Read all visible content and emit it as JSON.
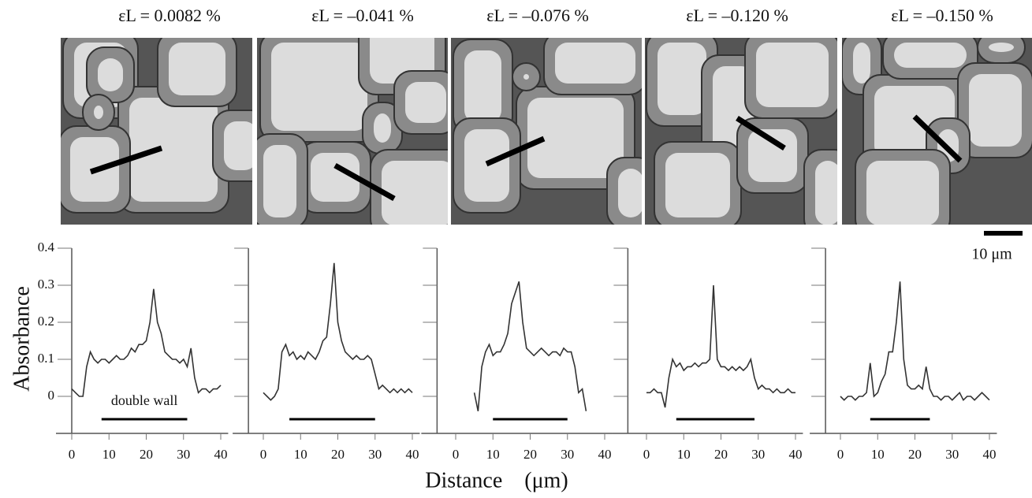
{
  "scale_bar_label": "10 μm",
  "chart_data": [
    {
      "type": "line",
      "title": "εL = 0.0082 %",
      "ylabel": "Absorbance",
      "annotation": "double wall",
      "x": [
        0,
        1,
        2,
        3,
        4,
        5,
        6,
        7,
        8,
        9,
        10,
        11,
        12,
        13,
        14,
        15,
        16,
        17,
        18,
        19,
        20,
        21,
        22,
        23,
        24,
        25,
        26,
        27,
        28,
        29,
        30,
        31,
        32,
        33,
        34,
        35,
        36,
        37,
        38,
        39,
        40
      ],
      "values": [
        0.02,
        0.01,
        0,
        0,
        0.08,
        0.12,
        0.1,
        0.09,
        0.1,
        0.1,
        0.09,
        0.1,
        0.11,
        0.1,
        0.1,
        0.11,
        0.13,
        0.12,
        0.14,
        0.14,
        0.15,
        0.2,
        0.29,
        0.2,
        0.17,
        0.12,
        0.11,
        0.1,
        0.1,
        0.09,
        0.1,
        0.08,
        0.13,
        0.05,
        0.01,
        0.02,
        0.02,
        0.01,
        0.02,
        0.02,
        0.03
      ],
      "double_wall": [
        8,
        31
      ],
      "color": "#333333",
      "xlim": [
        0,
        42
      ],
      "ylim": [
        -0.1,
        0.4
      ],
      "xticks": [
        0,
        10,
        20,
        30,
        40
      ],
      "yticks": [
        0,
        0.1,
        0.2,
        0.3,
        0.4
      ],
      "show_ytick_labels": true
    },
    {
      "type": "line",
      "title": "εL = –0.041 %",
      "x": [
        0,
        1,
        2,
        3,
        4,
        5,
        6,
        7,
        8,
        9,
        10,
        11,
        12,
        13,
        14,
        15,
        16,
        17,
        18,
        19,
        20,
        21,
        22,
        23,
        24,
        25,
        26,
        27,
        28,
        29,
        30,
        31,
        32,
        33,
        34,
        35,
        36,
        37,
        38,
        39,
        40
      ],
      "values": [
        0.01,
        0,
        -0.01,
        0,
        0.02,
        0.12,
        0.14,
        0.11,
        0.12,
        0.1,
        0.11,
        0.1,
        0.12,
        0.11,
        0.1,
        0.12,
        0.15,
        0.16,
        0.25,
        0.36,
        0.2,
        0.15,
        0.12,
        0.11,
        0.1,
        0.11,
        0.1,
        0.1,
        0.11,
        0.1,
        0.06,
        0.02,
        0.03,
        0.02,
        0.01,
        0.02,
        0.01,
        0.02,
        0.01,
        0.02,
        0.01
      ],
      "double_wall": [
        7,
        30
      ],
      "color": "#333333",
      "xlim": [
        -4,
        42
      ],
      "ylim": [
        -0.1,
        0.4
      ],
      "xticks": [
        0,
        10,
        20,
        30,
        40
      ],
      "yticks": [
        0,
        0.1,
        0.2,
        0.3,
        0.4
      ],
      "show_ytick_labels": false
    },
    {
      "type": "line",
      "title": "εL = –0.076 %",
      "xlabel": "Distance    (μm)",
      "x": [
        5,
        6,
        7,
        8,
        9,
        10,
        11,
        12,
        13,
        14,
        15,
        16,
        17,
        18,
        19,
        20,
        21,
        22,
        23,
        24,
        25,
        26,
        27,
        28,
        29,
        30,
        31,
        32,
        33,
        34,
        35
      ],
      "values": [
        0.01,
        -0.04,
        0.08,
        0.12,
        0.14,
        0.11,
        0.12,
        0.12,
        0.14,
        0.17,
        0.25,
        0.28,
        0.31,
        0.2,
        0.13,
        0.12,
        0.11,
        0.12,
        0.13,
        0.12,
        0.11,
        0.12,
        0.12,
        0.11,
        0.13,
        0.12,
        0.12,
        0.08,
        0.01,
        0.02,
        -0.04
      ],
      "double_wall": [
        10,
        30
      ],
      "color": "#333333",
      "xlim": [
        -5,
        42
      ],
      "ylim": [
        -0.1,
        0.4
      ],
      "xticks": [
        0,
        10,
        20,
        30,
        40
      ],
      "yticks": [
        0,
        0.1,
        0.2,
        0.3,
        0.4
      ],
      "show_ytick_labels": false
    },
    {
      "type": "line",
      "title": "εL = –0.120 %",
      "x": [
        0,
        1,
        2,
        3,
        4,
        5,
        6,
        7,
        8,
        9,
        10,
        11,
        12,
        13,
        14,
        15,
        16,
        17,
        18,
        19,
        20,
        21,
        22,
        23,
        24,
        25,
        26,
        27,
        28,
        29,
        30,
        31,
        32,
        33,
        34,
        35,
        36,
        37,
        38,
        39,
        40
      ],
      "values": [
        0.01,
        0.01,
        0.02,
        0.01,
        0.01,
        -0.03,
        0.05,
        0.1,
        0.08,
        0.09,
        0.07,
        0.08,
        0.08,
        0.09,
        0.08,
        0.09,
        0.09,
        0.1,
        0.3,
        0.1,
        0.08,
        0.08,
        0.07,
        0.08,
        0.07,
        0.08,
        0.07,
        0.08,
        0.1,
        0.05,
        0.02,
        0.03,
        0.02,
        0.02,
        0.01,
        0.02,
        0.01,
        0.01,
        0.02,
        0.01,
        0.01
      ],
      "double_wall": [
        8,
        29
      ],
      "color": "#333333",
      "xlim": [
        -5,
        42
      ],
      "ylim": [
        -0.1,
        0.4
      ],
      "xticks": [
        0,
        10,
        20,
        30,
        40
      ],
      "yticks": [
        0,
        0.1,
        0.2,
        0.3,
        0.4
      ],
      "show_ytick_labels": false
    },
    {
      "type": "line",
      "title": "εL = –0.150 %",
      "x": [
        0,
        1,
        2,
        3,
        4,
        5,
        6,
        7,
        8,
        9,
        10,
        11,
        12,
        13,
        14,
        15,
        16,
        17,
        18,
        19,
        20,
        21,
        22,
        23,
        24,
        25,
        26,
        27,
        28,
        29,
        30,
        31,
        32,
        33,
        34,
        35,
        36,
        37,
        38,
        39,
        40
      ],
      "values": [
        0,
        -0.01,
        0,
        0,
        -0.01,
        0,
        0,
        0.01,
        0.09,
        0,
        0.01,
        0.04,
        0.06,
        0.12,
        0.12,
        0.2,
        0.31,
        0.1,
        0.03,
        0.02,
        0.02,
        0.03,
        0.02,
        0.08,
        0.02,
        0,
        0,
        -0.01,
        0,
        0,
        -0.01,
        0,
        0.01,
        -0.01,
        0,
        0,
        -0.01,
        0,
        0.01,
        0,
        -0.01
      ],
      "double_wall": [
        8,
        24
      ],
      "color": "#333333",
      "xlim": [
        -4,
        42
      ],
      "ylim": [
        -0.1,
        0.4
      ],
      "xticks": [
        0,
        10,
        20,
        30,
        40
      ],
      "yticks": [
        0,
        0.1,
        0.2,
        0.3,
        0.4
      ],
      "show_ytick_labels": false
    }
  ]
}
